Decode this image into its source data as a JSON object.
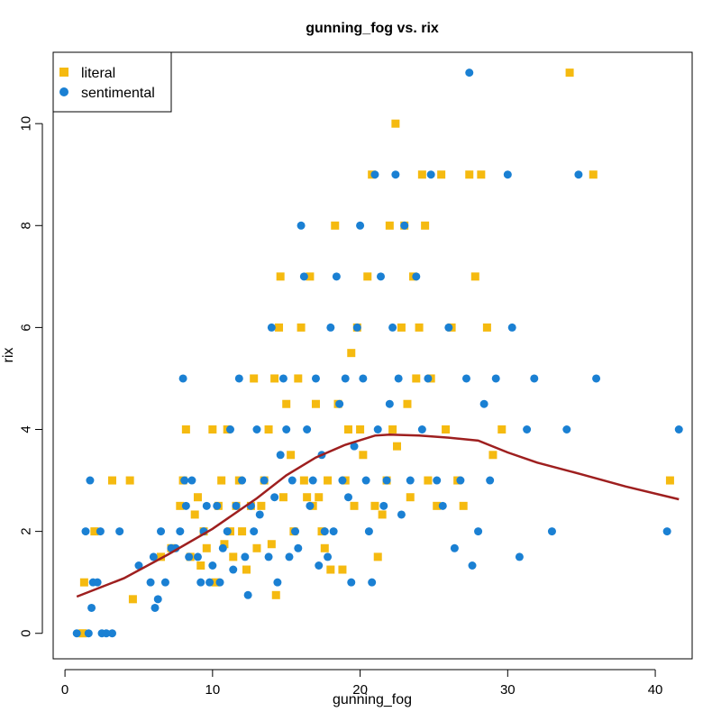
{
  "chart_data": {
    "type": "scatter",
    "title": "gunning_fog vs. rix",
    "xlabel": "gunning_fog",
    "ylabel": "rix",
    "xlim": [
      -0.8,
      42.5
    ],
    "ylim": [
      -0.5,
      11.4
    ],
    "xticks": [
      0,
      10,
      20,
      30,
      40
    ],
    "yticks": [
      0,
      2,
      4,
      6,
      8,
      10
    ],
    "grid": false,
    "legend_position": "top-left",
    "series": [
      {
        "name": "literal",
        "marker": "square",
        "color": "#F5BA10",
        "points": [
          [
            1.2,
            0
          ],
          [
            1.3,
            1
          ],
          [
            2.0,
            2
          ],
          [
            3.2,
            3
          ],
          [
            4.4,
            3
          ],
          [
            4.6,
            0.67
          ],
          [
            6.5,
            1.5
          ],
          [
            7.2,
            1.67
          ],
          [
            7.8,
            2.5
          ],
          [
            8.0,
            3
          ],
          [
            8.2,
            4
          ],
          [
            8.5,
            1.5
          ],
          [
            8.8,
            2.33
          ],
          [
            9.0,
            2.67
          ],
          [
            9.2,
            1.33
          ],
          [
            9.4,
            2
          ],
          [
            9.6,
            1.67
          ],
          [
            10.0,
            4
          ],
          [
            10.2,
            1
          ],
          [
            10.4,
            2.5
          ],
          [
            10.6,
            3
          ],
          [
            10.8,
            1.75
          ],
          [
            11.0,
            4
          ],
          [
            11.2,
            2
          ],
          [
            11.4,
            1.5
          ],
          [
            11.6,
            2.5
          ],
          [
            11.8,
            3
          ],
          [
            12.0,
            2
          ],
          [
            12.3,
            1.25
          ],
          [
            12.6,
            2.5
          ],
          [
            12.8,
            5
          ],
          [
            13.0,
            1.67
          ],
          [
            13.3,
            2.5
          ],
          [
            13.5,
            3
          ],
          [
            13.8,
            4
          ],
          [
            14.0,
            1.75
          ],
          [
            14.2,
            5
          ],
          [
            14.3,
            0.75
          ],
          [
            14.5,
            6
          ],
          [
            14.6,
            7
          ],
          [
            14.8,
            2.67
          ],
          [
            15.0,
            4.5
          ],
          [
            15.3,
            3.5
          ],
          [
            15.5,
            2
          ],
          [
            15.8,
            5
          ],
          [
            16.0,
            6
          ],
          [
            16.2,
            3
          ],
          [
            16.4,
            2.67
          ],
          [
            16.6,
            7
          ],
          [
            16.8,
            2.5
          ],
          [
            17.0,
            4.5
          ],
          [
            17.2,
            2.67
          ],
          [
            17.4,
            2
          ],
          [
            17.6,
            1.67
          ],
          [
            17.8,
            3
          ],
          [
            18.0,
            1.25
          ],
          [
            18.3,
            8
          ],
          [
            18.5,
            4.5
          ],
          [
            18.8,
            1.25
          ],
          [
            19.0,
            3
          ],
          [
            19.2,
            4
          ],
          [
            19.4,
            5.5
          ],
          [
            19.6,
            2.5
          ],
          [
            19.8,
            6
          ],
          [
            20.0,
            4
          ],
          [
            20.2,
            3.5
          ],
          [
            20.5,
            7
          ],
          [
            20.8,
            9
          ],
          [
            21.0,
            2.5
          ],
          [
            21.2,
            1.5
          ],
          [
            21.5,
            2.33
          ],
          [
            21.8,
            3
          ],
          [
            22.0,
            8
          ],
          [
            22.2,
            4
          ],
          [
            22.4,
            10
          ],
          [
            22.5,
            3.67
          ],
          [
            22.8,
            6
          ],
          [
            23.0,
            8
          ],
          [
            23.2,
            4.5
          ],
          [
            23.4,
            2.67
          ],
          [
            23.6,
            7
          ],
          [
            23.8,
            5
          ],
          [
            24.0,
            6
          ],
          [
            24.2,
            9
          ],
          [
            24.4,
            8
          ],
          [
            24.6,
            3
          ],
          [
            24.8,
            5
          ],
          [
            25.2,
            2.5
          ],
          [
            25.5,
            9
          ],
          [
            25.8,
            4
          ],
          [
            26.2,
            6
          ],
          [
            26.6,
            3
          ],
          [
            27.0,
            2.5
          ],
          [
            27.4,
            9
          ],
          [
            27.8,
            7
          ],
          [
            28.2,
            9
          ],
          [
            28.6,
            6
          ],
          [
            29.0,
            3.5
          ],
          [
            29.6,
            4
          ],
          [
            34.2,
            11
          ],
          [
            35.8,
            9
          ],
          [
            41.0,
            3
          ]
        ]
      },
      {
        "name": "sentimental",
        "marker": "circle",
        "color": "#1A80D3",
        "points": [
          [
            0.8,
            0
          ],
          [
            1.6,
            0
          ],
          [
            1.4,
            2
          ],
          [
            1.7,
            3
          ],
          [
            1.8,
            0.5
          ],
          [
            1.9,
            1
          ],
          [
            2.2,
            1
          ],
          [
            2.4,
            2
          ],
          [
            2.5,
            0
          ],
          [
            2.8,
            0
          ],
          [
            3.2,
            0
          ],
          [
            3.7,
            2
          ],
          [
            5.0,
            1.33
          ],
          [
            5.8,
            1
          ],
          [
            6.0,
            1.5
          ],
          [
            6.1,
            0.5
          ],
          [
            6.3,
            0.67
          ],
          [
            6.5,
            2
          ],
          [
            6.8,
            1
          ],
          [
            7.2,
            1.67
          ],
          [
            7.5,
            1.67
          ],
          [
            7.8,
            2
          ],
          [
            8.0,
            5
          ],
          [
            8.1,
            3
          ],
          [
            8.2,
            2.5
          ],
          [
            8.4,
            1.5
          ],
          [
            8.6,
            3
          ],
          [
            9.0,
            1.5
          ],
          [
            9.2,
            1
          ],
          [
            9.4,
            2
          ],
          [
            9.6,
            2.5
          ],
          [
            9.8,
            1
          ],
          [
            10.0,
            1.33
          ],
          [
            10.3,
            2.5
          ],
          [
            10.5,
            1
          ],
          [
            10.7,
            1.67
          ],
          [
            11.0,
            2
          ],
          [
            11.2,
            4
          ],
          [
            11.4,
            1.25
          ],
          [
            11.6,
            2.5
          ],
          [
            11.8,
            5
          ],
          [
            12.0,
            3
          ],
          [
            12.2,
            1.5
          ],
          [
            12.4,
            0.75
          ],
          [
            12.6,
            2.5
          ],
          [
            12.8,
            2
          ],
          [
            13.0,
            4
          ],
          [
            13.2,
            2.33
          ],
          [
            13.5,
            3
          ],
          [
            13.8,
            1.5
          ],
          [
            14.0,
            6
          ],
          [
            14.2,
            2.67
          ],
          [
            14.4,
            1
          ],
          [
            14.6,
            3.5
          ],
          [
            14.8,
            5
          ],
          [
            15.0,
            4
          ],
          [
            15.2,
            1.5
          ],
          [
            15.4,
            3
          ],
          [
            15.6,
            2
          ],
          [
            15.8,
            1.67
          ],
          [
            16.0,
            8
          ],
          [
            16.2,
            7
          ],
          [
            16.4,
            4
          ],
          [
            16.6,
            2.5
          ],
          [
            16.8,
            3
          ],
          [
            17.0,
            5
          ],
          [
            17.2,
            1.33
          ],
          [
            17.4,
            3.5
          ],
          [
            17.6,
            2
          ],
          [
            17.8,
            1.5
          ],
          [
            18.0,
            6
          ],
          [
            18.2,
            2
          ],
          [
            18.4,
            7
          ],
          [
            18.6,
            4.5
          ],
          [
            18.8,
            3
          ],
          [
            19.0,
            5
          ],
          [
            19.2,
            2.67
          ],
          [
            19.4,
            1
          ],
          [
            19.6,
            3.67
          ],
          [
            19.8,
            6
          ],
          [
            20.0,
            8
          ],
          [
            20.2,
            5
          ],
          [
            20.4,
            3
          ],
          [
            20.6,
            2
          ],
          [
            20.8,
            1
          ],
          [
            21.0,
            9
          ],
          [
            21.2,
            4
          ],
          [
            21.4,
            7
          ],
          [
            21.6,
            2.5
          ],
          [
            21.8,
            3
          ],
          [
            22.0,
            4.5
          ],
          [
            22.2,
            6
          ],
          [
            22.4,
            9
          ],
          [
            22.6,
            5
          ],
          [
            22.8,
            2.33
          ],
          [
            23.0,
            8
          ],
          [
            23.4,
            3
          ],
          [
            23.8,
            7
          ],
          [
            24.2,
            4
          ],
          [
            24.6,
            5
          ],
          [
            24.8,
            9
          ],
          [
            25.2,
            3
          ],
          [
            25.6,
            2.5
          ],
          [
            26.0,
            6
          ],
          [
            26.4,
            1.67
          ],
          [
            26.8,
            3
          ],
          [
            27.2,
            5
          ],
          [
            27.4,
            11
          ],
          [
            27.6,
            1.33
          ],
          [
            28.0,
            2
          ],
          [
            28.4,
            4.5
          ],
          [
            28.8,
            3
          ],
          [
            29.2,
            5
          ],
          [
            30.0,
            9
          ],
          [
            30.3,
            6
          ],
          [
            30.8,
            1.5
          ],
          [
            31.3,
            4
          ],
          [
            31.8,
            5
          ],
          [
            33.0,
            2
          ],
          [
            34.0,
            4
          ],
          [
            34.8,
            9
          ],
          [
            36.0,
            5
          ],
          [
            40.8,
            2
          ],
          [
            41.6,
            4
          ]
        ]
      }
    ],
    "trend_line": {
      "color": "#9E1F1F",
      "points": [
        [
          0.8,
          0.72
        ],
        [
          4,
          1.08
        ],
        [
          7,
          1.55
        ],
        [
          10,
          2.05
        ],
        [
          13,
          2.65
        ],
        [
          15,
          3.1
        ],
        [
          17,
          3.45
        ],
        [
          19,
          3.7
        ],
        [
          21,
          3.88
        ],
        [
          22,
          3.9
        ],
        [
          24,
          3.88
        ],
        [
          26,
          3.84
        ],
        [
          28,
          3.78
        ],
        [
          30,
          3.55
        ],
        [
          32,
          3.35
        ],
        [
          35,
          3.12
        ],
        [
          38,
          2.88
        ],
        [
          41.6,
          2.63
        ]
      ]
    }
  }
}
